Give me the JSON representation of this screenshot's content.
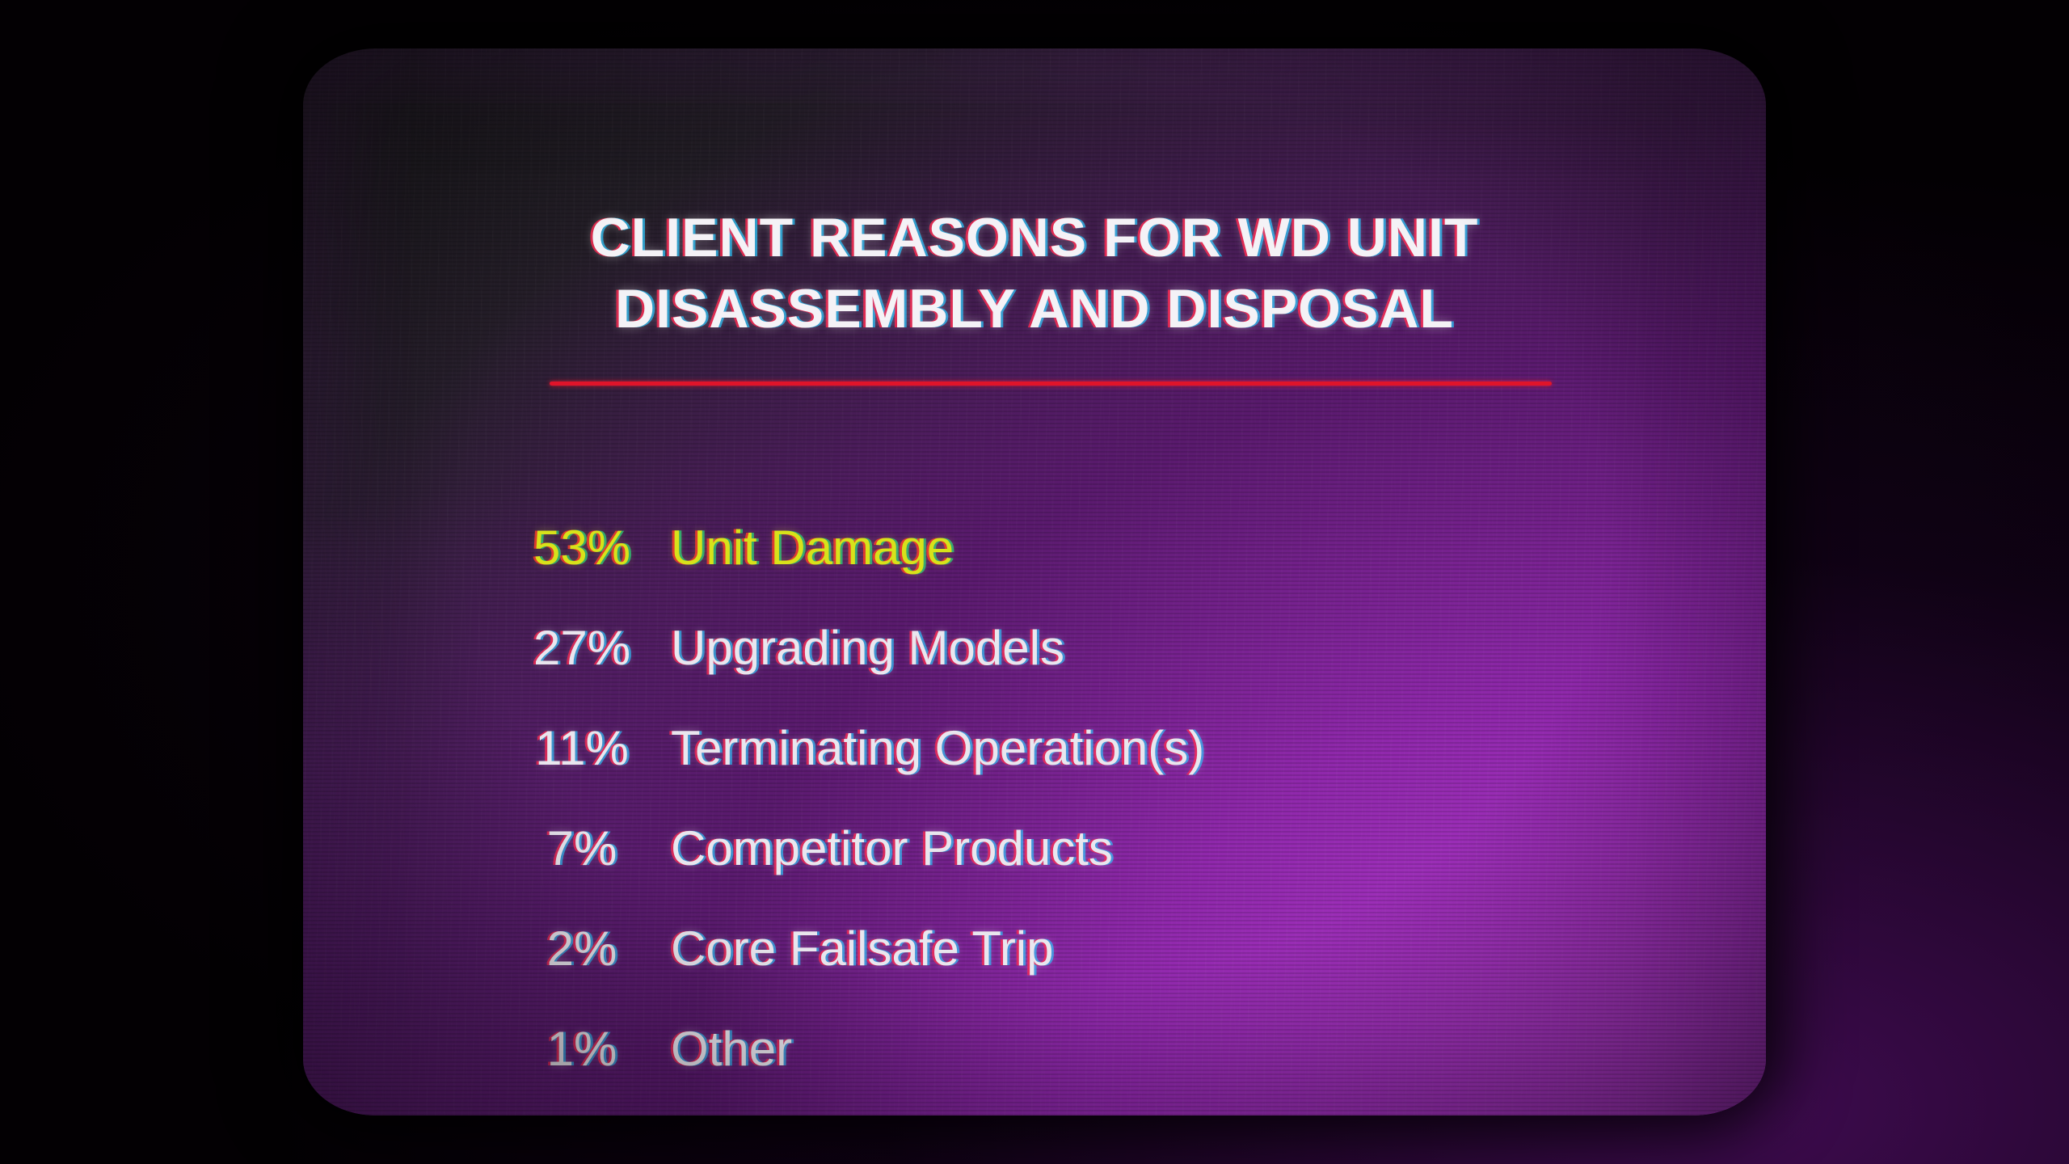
{
  "screen": {
    "title_lines": [
      "CLIENT REASONS FOR WD UNIT",
      "DISASSEMBLY AND DISPOSAL"
    ],
    "accent_color": "#e0142a",
    "highlight_color": "#d8e21a",
    "reasons": [
      {
        "percent": "53%",
        "label": "Unit Damage"
      },
      {
        "percent": "27%",
        "label": "Upgrading Models"
      },
      {
        "percent": "11%",
        "label": "Terminating Operation(s)"
      },
      {
        "percent": "7%",
        "label": "Competitor Products"
      },
      {
        "percent": "2%",
        "label": "Core Failsafe Trip"
      },
      {
        "percent": "1%",
        "label": "Other"
      }
    ]
  }
}
